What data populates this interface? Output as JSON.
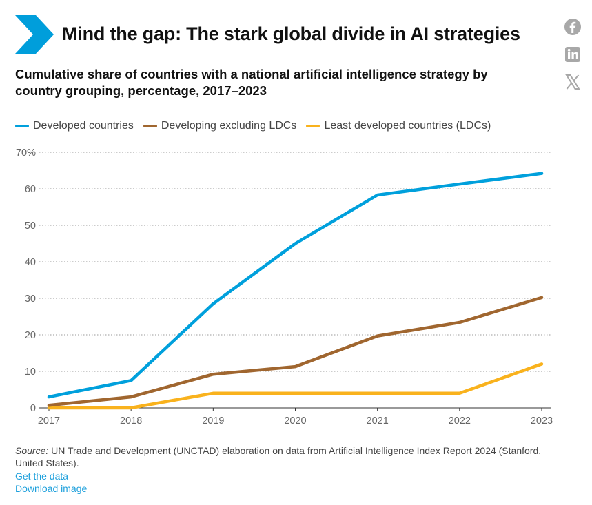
{
  "header": {
    "title": "Mind the gap: The stark global divide in AI strategies",
    "subtitle": "Cumulative share of countries with a national artificial intelligence strategy by country grouping, percentage, 2017–2023"
  },
  "share_icons": [
    "facebook-icon",
    "linkedin-icon",
    "x-icon"
  ],
  "colors": {
    "accent": "#009edb",
    "developed": "#00a0dc",
    "developing": "#a0662f",
    "ldc": "#f9b21d",
    "grid": "#9a9a9a",
    "link": "#1ea0dc"
  },
  "chart_data": {
    "type": "line",
    "title": "Cumulative share of countries with a national artificial intelligence strategy by country grouping, percentage, 2017–2023",
    "xlabel": "",
    "ylabel": "",
    "x": [
      "2017",
      "2018",
      "2019",
      "2020",
      "2021",
      "2022",
      "2023"
    ],
    "ylim": [
      0,
      70
    ],
    "yticks": [
      0,
      10,
      20,
      30,
      40,
      50,
      60,
      70
    ],
    "ytick_labels": [
      "0",
      "10",
      "20",
      "30",
      "40",
      "50",
      "60",
      "70%"
    ],
    "grid": true,
    "legend_position": "top-left",
    "series": [
      {
        "name": "Developed countries",
        "color": "#00a0dc",
        "values": [
          3,
          7.5,
          28.5,
          45,
          58.3,
          61.3,
          64.2
        ]
      },
      {
        "name": "Developing excluding LDCs",
        "color": "#a0662f",
        "values": [
          0.7,
          3,
          9.2,
          11.3,
          19.7,
          23.4,
          30.2
        ]
      },
      {
        "name": "Least developed countries (LDCs)",
        "color": "#f9b21d",
        "values": [
          0,
          0,
          4,
          4,
          4,
          4,
          12
        ]
      }
    ]
  },
  "footer": {
    "source_label": "Source:",
    "source_text": " UN Trade and Development (UNCTAD) elaboration on data from Artificial Intelligence Index Report 2024 (Stanford, United States).",
    "get_data": "Get the data",
    "download_image": "Download image"
  }
}
